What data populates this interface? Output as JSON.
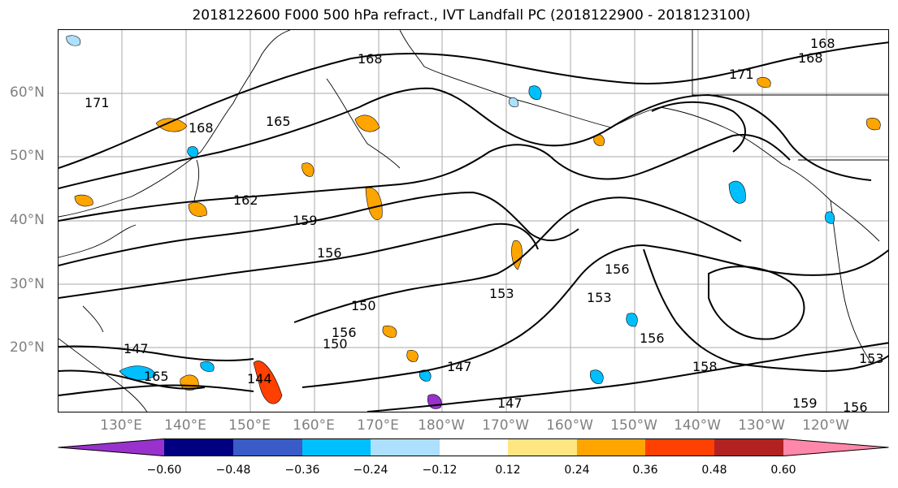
{
  "title": "2018122600 F000 500 hPa refract., IVT Landfall PC (2018122900 - 2018123100)",
  "lat_labels": [
    "60°N",
    "50°N",
    "40°N",
    "30°N",
    "20°N"
  ],
  "lon_labels": [
    "130°E",
    "140°E",
    "150°E",
    "160°E",
    "170°E",
    "180°W",
    "170°W",
    "160°W",
    "150°W",
    "140°W",
    "130°W",
    "120°W"
  ],
  "contour_labels": [
    "168",
    "168",
    "168",
    "168",
    "171",
    "171",
    "165",
    "162",
    "159",
    "156",
    "156",
    "153",
    "153",
    "150",
    "150",
    "156",
    "147",
    "147",
    "147",
    "144",
    "165",
    "159",
    "156",
    "153",
    "156",
    "158"
  ],
  "colorbar": {
    "colors": [
      "#9932CC",
      "#000080",
      "#3A5BC8",
      "#00BFFF",
      "#ADDFFF",
      "#FFFFFF",
      "#FFE680",
      "#FFA500",
      "#FF4000",
      "#B22222",
      "#FF88AA"
    ],
    "tick_labels": [
      "−0.60",
      "−0.48",
      "−0.36",
      "−0.24",
      "−0.12",
      "0.12",
      "0.24",
      "0.36",
      "0.48",
      "0.60"
    ]
  }
}
